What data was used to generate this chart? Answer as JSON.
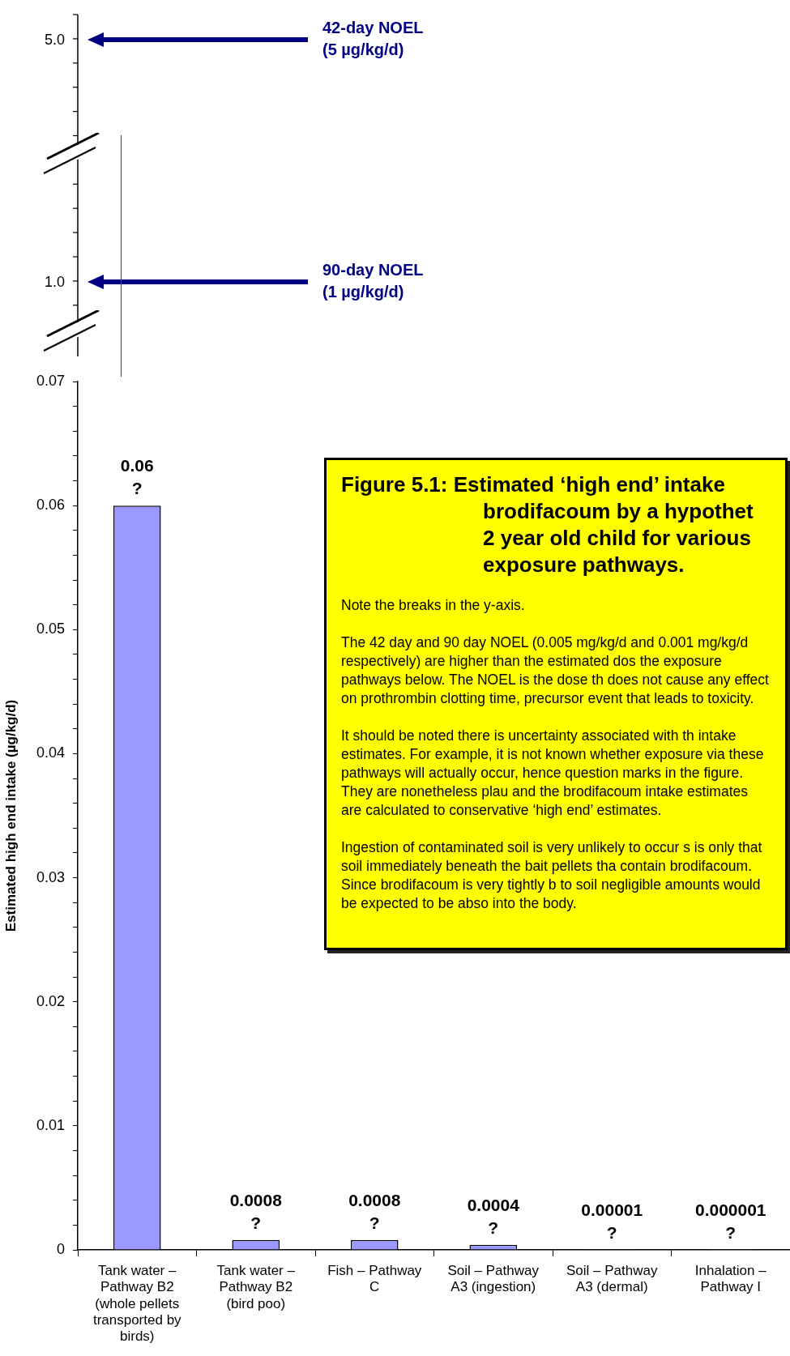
{
  "chart_data": [
    {
      "type": "other",
      "annotations": [
        "5.0",
        "42-day NOEL\n(5 µg/kg/d)",
        "1.0",
        "90-day NOEL\n(1 µg/kg/d)"
      ]
    },
    {
      "type": "bar",
      "title": "Figure 5.1: Estimated ‘high end’ intake\nbrodifacoum by a hypothet\n2 year old child for various\nexposure pathways.",
      "ylabel": "Estimated high end intake (µg/kg/d)",
      "categories": [
        "Tank water – Pathway B2 (whole pellets transported by birds)",
        "Tank water – Pathway B2 (bird poo)",
        "Fish – Pathway C",
        "Soil – Pathway A3 (ingestion)",
        "Soil – Pathway A3 (dermal)",
        "Inhalation – Pathway I"
      ],
      "values": [
        0.06,
        0.0008,
        0.0008,
        0.0004,
        1e-05,
        1e-06
      ],
      "value_labels": [
        "0.06\n?",
        "0.0008\n?",
        "0.0008\n?",
        "0.0004\n?",
        "0.00001\n?",
        "0.000001\n?"
      ],
      "color": "#9999ff",
      "ylim": [
        0,
        0.07
      ],
      "yticks": [
        0,
        {
          "value": 0.002,
          "label": null
        },
        {
          "value": 0.004,
          "label": null
        },
        {
          "value": 0.006,
          "label": null
        },
        {
          "value": 0.008,
          "label": null
        },
        0.01,
        {
          "value": 0.012,
          "label": null
        },
        {
          "value": 0.014,
          "label": null
        },
        {
          "value": 0.016,
          "label": null
        },
        {
          "value": 0.018,
          "label": null
        },
        0.02,
        {
          "value": 0.022,
          "label": null
        },
        {
          "value": 0.024,
          "label": null
        },
        {
          "value": 0.026,
          "label": null
        },
        {
          "value": 0.028,
          "label": null
        },
        0.03,
        {
          "value": 0.032,
          "label": null
        },
        {
          "value": 0.034,
          "label": null
        },
        {
          "value": 0.036,
          "label": null
        },
        {
          "value": 0.038,
          "label": null
        },
        0.04,
        {
          "value": 0.042,
          "label": null
        },
        {
          "value": 0.044,
          "label": null
        },
        {
          "value": 0.046,
          "label": null
        },
        {
          "value": 0.048,
          "label": null
        },
        0.05,
        {
          "value": 0.052,
          "label": null
        },
        {
          "value": 0.054,
          "label": null
        },
        {
          "value": 0.056,
          "label": null
        },
        {
          "value": 0.058,
          "label": null
        },
        0.06,
        {
          "value": 0.062,
          "label": null
        },
        {
          "value": 0.064,
          "label": null
        },
        {
          "value": 0.066,
          "label": null
        },
        {
          "value": 0.068,
          "label": null
        },
        0.07
      ],
      "grid": false,
      "legend": false,
      "annotations": [
        "Note the breaks in the y-axis.",
        "The 42 day and 90 day NOEL (0.005 mg/kg/d and 0.001 mg/kg/d respectively) are higher than the estimated dos the exposure pathways below. The NOEL is the dose th does not cause any effect on prothrombin clotting time, precursor event that leads to toxicity.",
        "It should be noted there is uncertainty associated with th intake estimates. For example, it is not known whether exposure via these pathways will actually occur, hence question marks in the figure. They are nonetheless plau and the brodifacoum intake estimates are calculated to conservative ‘high end’ estimates.",
        "Ingestion of contaminated soil is very unlikely to occur s is only that soil immediately beneath the bait pellets tha contain brodifacoum. Since brodifacoum is very tightly b to soil negligible amounts would be expected to be abso into the body."
      ]
    }
  ]
}
